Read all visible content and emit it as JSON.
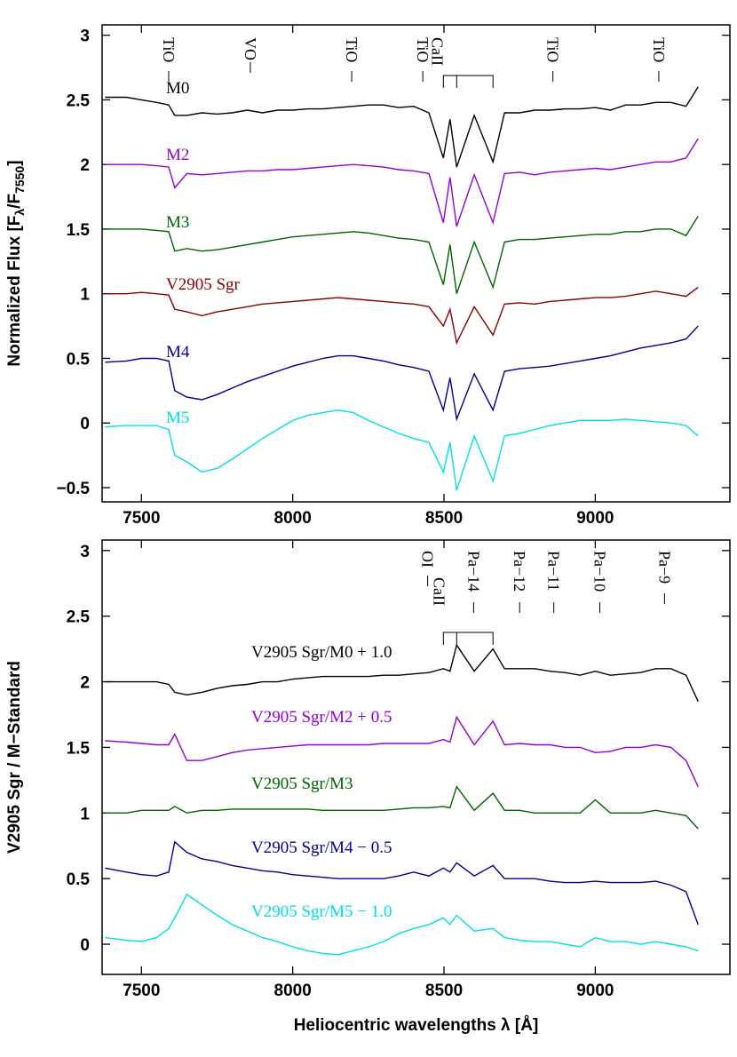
{
  "chart_data": [
    {
      "type": "line",
      "ylabel": [
        {
          "text": "Normalized Flux [F"
        },
        {
          "text": "λ",
          "sub": true
        },
        {
          "text": "/F"
        },
        {
          "text": "7550",
          "sub": true
        },
        {
          "text": "]"
        }
      ],
      "xlim": [
        7370,
        9445
      ],
      "ylim": [
        -0.61,
        3.08
      ],
      "xticks": [
        7500,
        8000,
        8500,
        9000
      ],
      "yticks": [
        {
          "value": -0.5,
          "label": "−0.5"
        },
        0,
        0.5,
        1,
        1.5,
        2,
        2.5,
        3
      ],
      "annotations": [
        {
          "text": "TiO",
          "x": 7590
        },
        {
          "text": "VO",
          "x": 7860
        },
        {
          "text": "TiO",
          "x": 8195
        },
        {
          "text": "TiO",
          "x": 8430
        },
        {
          "text": "TiO",
          "x": 8860
        },
        {
          "text": "TiO",
          "x": 9210
        }
      ],
      "bracket": {
        "text": "CaII",
        "x": [
          8498,
          8542,
          8662
        ]
      },
      "x": [
        7380,
        7450,
        7500,
        7550,
        7590,
        7610,
        7650,
        7700,
        7750,
        7800,
        7850,
        7900,
        7950,
        8000,
        8050,
        8100,
        8150,
        8200,
        8250,
        8300,
        8350,
        8400,
        8450,
        8498,
        8520,
        8542,
        8600,
        8662,
        8700,
        8750,
        8800,
        8850,
        8900,
        8950,
        9000,
        9050,
        9100,
        9150,
        9200,
        9250,
        9300,
        9340
      ],
      "series": [
        {
          "name": "M0",
          "color": "#000000",
          "values": [
            2.52,
            2.52,
            2.5,
            2.48,
            2.46,
            2.38,
            2.38,
            2.4,
            2.39,
            2.4,
            2.42,
            2.4,
            2.42,
            2.42,
            2.43,
            2.43,
            2.44,
            2.45,
            2.46,
            2.46,
            2.44,
            2.45,
            2.4,
            2.05,
            2.35,
            1.98,
            2.38,
            2.02,
            2.4,
            2.4,
            2.42,
            2.42,
            2.43,
            2.43,
            2.44,
            2.42,
            2.46,
            2.46,
            2.48,
            2.48,
            2.45,
            2.6
          ]
        },
        {
          "name": "M2",
          "color": "#9400d3",
          "values": [
            2.0,
            2.0,
            2.0,
            1.99,
            1.98,
            1.82,
            1.93,
            1.92,
            1.93,
            1.94,
            1.95,
            1.95,
            1.96,
            1.96,
            1.97,
            1.98,
            1.99,
            2.0,
            1.99,
            1.98,
            1.96,
            1.95,
            1.93,
            1.55,
            1.9,
            1.52,
            1.92,
            1.55,
            1.93,
            1.94,
            1.92,
            1.94,
            1.95,
            1.96,
            1.97,
            1.96,
            1.98,
            2.0,
            2.02,
            2.02,
            2.05,
            2.2
          ]
        },
        {
          "name": "M3",
          "color": "#006400",
          "values": [
            1.5,
            1.5,
            1.5,
            1.49,
            1.48,
            1.33,
            1.35,
            1.33,
            1.34,
            1.36,
            1.38,
            1.4,
            1.42,
            1.44,
            1.45,
            1.46,
            1.47,
            1.48,
            1.47,
            1.45,
            1.43,
            1.42,
            1.4,
            1.07,
            1.38,
            1.0,
            1.4,
            1.05,
            1.4,
            1.42,
            1.42,
            1.43,
            1.44,
            1.45,
            1.46,
            1.46,
            1.48,
            1.48,
            1.5,
            1.5,
            1.45,
            1.6
          ]
        },
        {
          "name": "V2905 Sgr",
          "color": "#8b0000",
          "values": [
            1.0,
            1.0,
            1.01,
            1.0,
            0.99,
            0.88,
            0.86,
            0.83,
            0.86,
            0.88,
            0.9,
            0.92,
            0.93,
            0.94,
            0.95,
            0.96,
            0.97,
            0.96,
            0.95,
            0.94,
            0.93,
            0.92,
            0.9,
            0.75,
            0.88,
            0.62,
            0.9,
            0.68,
            0.92,
            0.93,
            0.92,
            0.94,
            0.95,
            0.96,
            0.97,
            0.97,
            0.98,
            1.0,
            1.02,
            1.0,
            0.98,
            1.05
          ]
        },
        {
          "name": "M4",
          "color": "#00008b",
          "values": [
            0.47,
            0.48,
            0.5,
            0.5,
            0.48,
            0.25,
            0.2,
            0.18,
            0.22,
            0.27,
            0.32,
            0.36,
            0.4,
            0.44,
            0.47,
            0.5,
            0.52,
            0.52,
            0.5,
            0.48,
            0.45,
            0.43,
            0.4,
            0.1,
            0.35,
            0.03,
            0.38,
            0.1,
            0.4,
            0.42,
            0.43,
            0.44,
            0.46,
            0.48,
            0.5,
            0.52,
            0.55,
            0.58,
            0.6,
            0.62,
            0.65,
            0.75
          ]
        },
        {
          "name": "M5",
          "color": "#00e0e0",
          "values": [
            -0.03,
            -0.02,
            -0.02,
            -0.02,
            -0.05,
            -0.25,
            -0.3,
            -0.38,
            -0.35,
            -0.28,
            -0.2,
            -0.12,
            -0.05,
            0.02,
            0.06,
            0.08,
            0.1,
            0.08,
            0.02,
            -0.03,
            -0.08,
            -0.12,
            -0.15,
            -0.38,
            -0.15,
            -0.52,
            -0.1,
            -0.45,
            -0.1,
            -0.08,
            -0.05,
            -0.02,
            0.0,
            0.02,
            0.02,
            0.02,
            0.03,
            0.02,
            0.01,
            0.0,
            -0.02,
            -0.1
          ]
        }
      ]
    },
    {
      "type": "line",
      "ylabel": [
        {
          "text": "V2905 Sgr / M−Standard"
        }
      ],
      "xlabel": "Heliocentric wavelengths λ [Å]",
      "xlim": [
        7370,
        9445
      ],
      "ylim": [
        -0.23,
        3.08
      ],
      "xticks": [
        7500,
        8000,
        8500,
        9000
      ],
      "yticks": [
        0,
        0.5,
        1,
        1.5,
        2,
        2.5,
        3
      ],
      "annotations": [
        {
          "text": "OI",
          "x": 8446
        },
        {
          "text": "Pa−14",
          "x": 8598
        },
        {
          "text": "Pa−12",
          "x": 8750
        },
        {
          "text": "Pa−11",
          "x": 8863
        },
        {
          "text": "Pa−10",
          "x": 9015
        },
        {
          "text": "Pa−9",
          "x": 9229
        }
      ],
      "bracket": {
        "text": "CaII",
        "x": [
          8498,
          8542,
          8662
        ]
      },
      "x": [
        7380,
        7450,
        7500,
        7550,
        7590,
        7610,
        7650,
        7700,
        7750,
        7800,
        7850,
        7900,
        7950,
        8000,
        8050,
        8100,
        8150,
        8200,
        8250,
        8300,
        8350,
        8400,
        8450,
        8498,
        8520,
        8542,
        8600,
        8662,
        8700,
        8750,
        8800,
        8850,
        8900,
        8950,
        9000,
        9050,
        9100,
        9150,
        9200,
        9250,
        9300,
        9340
      ],
      "series": [
        {
          "name": "V2905 Sgr/M0 + 1.0",
          "color": "#000000",
          "values": [
            2.0,
            2.0,
            2.0,
            2.0,
            1.98,
            1.92,
            1.9,
            1.92,
            1.95,
            1.97,
            1.98,
            2.0,
            2.0,
            2.02,
            2.03,
            2.04,
            2.04,
            2.04,
            2.04,
            2.05,
            2.05,
            2.06,
            2.07,
            2.1,
            2.08,
            2.28,
            2.08,
            2.25,
            2.1,
            2.1,
            2.1,
            2.08,
            2.07,
            2.05,
            2.08,
            2.05,
            2.06,
            2.07,
            2.1,
            2.1,
            2.05,
            1.85
          ]
        },
        {
          "name": "V2905 Sgr/M2 + 0.5",
          "color": "#9400d3",
          "values": [
            1.55,
            1.54,
            1.53,
            1.52,
            1.52,
            1.6,
            1.4,
            1.4,
            1.43,
            1.46,
            1.48,
            1.49,
            1.5,
            1.51,
            1.52,
            1.52,
            1.52,
            1.52,
            1.52,
            1.53,
            1.53,
            1.53,
            1.53,
            1.56,
            1.54,
            1.73,
            1.52,
            1.7,
            1.52,
            1.53,
            1.52,
            1.52,
            1.5,
            1.5,
            1.46,
            1.47,
            1.5,
            1.5,
            1.52,
            1.5,
            1.4,
            1.2
          ]
        },
        {
          "name": "V2905 Sgr/M3",
          "color": "#006400",
          "values": [
            1.0,
            1.0,
            1.02,
            1.02,
            1.02,
            1.05,
            1.0,
            1.02,
            1.02,
            1.03,
            1.03,
            1.03,
            1.03,
            1.03,
            1.03,
            1.02,
            1.02,
            1.02,
            1.02,
            1.02,
            1.03,
            1.04,
            1.04,
            1.05,
            1.04,
            1.2,
            1.02,
            1.15,
            1.02,
            1.02,
            1.0,
            1.0,
            1.0,
            1.0,
            1.1,
            1.0,
            1.0,
            1.0,
            1.02,
            1.0,
            0.98,
            0.88
          ]
        },
        {
          "name": "V2905 Sgr/M4 − 0.5",
          "color": "#00008b",
          "values": [
            0.58,
            0.55,
            0.53,
            0.52,
            0.55,
            0.78,
            0.7,
            0.65,
            0.63,
            0.6,
            0.58,
            0.56,
            0.55,
            0.53,
            0.52,
            0.51,
            0.5,
            0.5,
            0.5,
            0.5,
            0.52,
            0.55,
            0.52,
            0.58,
            0.55,
            0.62,
            0.52,
            0.6,
            0.5,
            0.5,
            0.5,
            0.48,
            0.47,
            0.47,
            0.48,
            0.47,
            0.47,
            0.47,
            0.48,
            0.45,
            0.4,
            0.15
          ]
        },
        {
          "name": "V2905 Sgr/M5 − 1.0",
          "color": "#00e0e0",
          "values": [
            0.05,
            0.03,
            0.02,
            0.05,
            0.12,
            0.2,
            0.38,
            0.3,
            0.22,
            0.15,
            0.1,
            0.05,
            0.02,
            -0.02,
            -0.05,
            -0.07,
            -0.08,
            -0.05,
            -0.02,
            0.02,
            0.08,
            0.12,
            0.15,
            0.2,
            0.15,
            0.22,
            0.1,
            0.12,
            0.05,
            0.03,
            0.02,
            0.02,
            0.0,
            -0.02,
            0.05,
            0.02,
            0.02,
            0.0,
            0.02,
            0.0,
            -0.02,
            -0.05
          ]
        }
      ]
    }
  ]
}
